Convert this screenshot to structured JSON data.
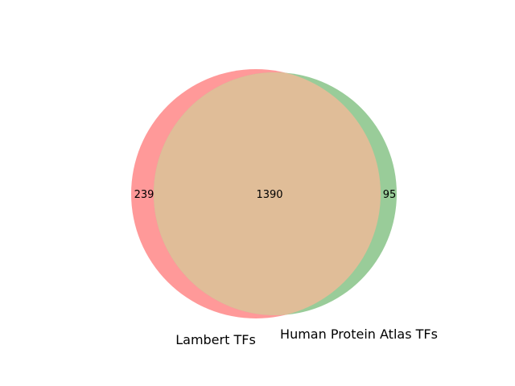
{
  "chart_data": {
    "type": "venn",
    "sets": [
      {
        "name": "Lambert TFs",
        "only_count": "239",
        "color": "#ff9999"
      },
      {
        "name": "Human Protein Atlas TFs",
        "only_count": "95",
        "color": "#99cc99"
      }
    ],
    "intersection": {
      "count": "1390",
      "color": "#e0bd98"
    }
  }
}
